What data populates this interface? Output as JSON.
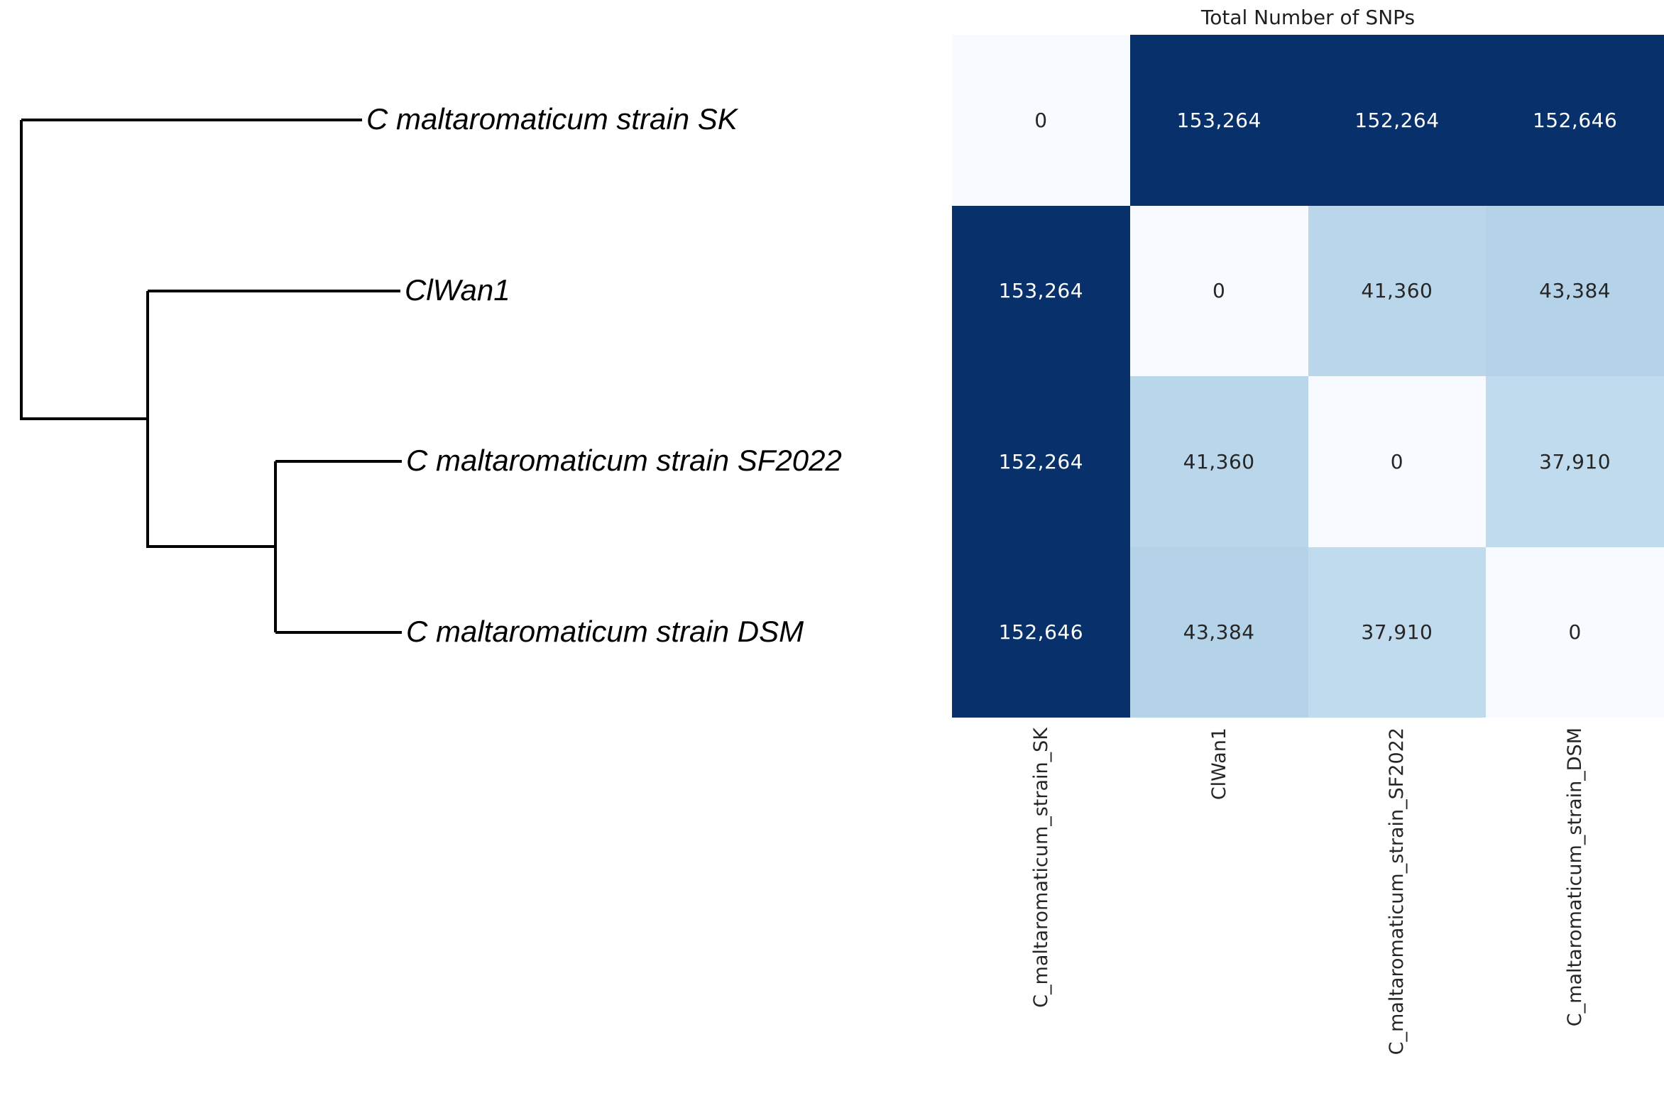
{
  "tree": {
    "leaves": [
      {
        "label": "C maltaromaticum strain SK"
      },
      {
        "label": "ClWan1"
      },
      {
        "label": "C maltaromaticum strain SF2022"
      },
      {
        "label": "C maltaromaticum strain DSM"
      }
    ]
  },
  "chart_data": {
    "type": "heatmap",
    "title": "Total Number of SNPs",
    "rows": [
      "C_maltaromaticum_strain_SK",
      "ClWan1",
      "C_maltaromaticum_strain_SF2022",
      "C_maltaromaticum_strain_DSM"
    ],
    "columns": [
      "C_maltaromaticum_strain_SK",
      "ClWan1",
      "C_maltaromaticum_strain_SF2022",
      "C_maltaromaticum_strain_DSM"
    ],
    "matrix": [
      [
        0,
        153264,
        152264,
        152646
      ],
      [
        153264,
        0,
        41360,
        43384
      ],
      [
        152264,
        41360,
        0,
        37910
      ],
      [
        152646,
        43384,
        37910,
        0
      ]
    ],
    "cell_colors": [
      [
        "#f7fbff",
        "#08306b",
        "#08316c",
        "#08316b"
      ],
      [
        "#08306b",
        "#f7fbff",
        "#b9d6ea",
        "#b4d3e8"
      ],
      [
        "#08316c",
        "#b9d6ea",
        "#f7fbff",
        "#c0dbee"
      ],
      [
        "#08316b",
        "#b4d3e8",
        "#c0dbee",
        "#f7fbff"
      ]
    ],
    "colormap": "Blues",
    "vmin": 0,
    "vmax": 153264,
    "value_format": "thousands-comma",
    "legend": "none",
    "grid": "off"
  },
  "colors": {
    "background": "#ffffff",
    "tree_line": "#000000",
    "title_text": "#1f1f1f",
    "tick_label_text": "#262626",
    "dark_cell_text": "#ffffff",
    "light_cell_text": "#262626"
  }
}
